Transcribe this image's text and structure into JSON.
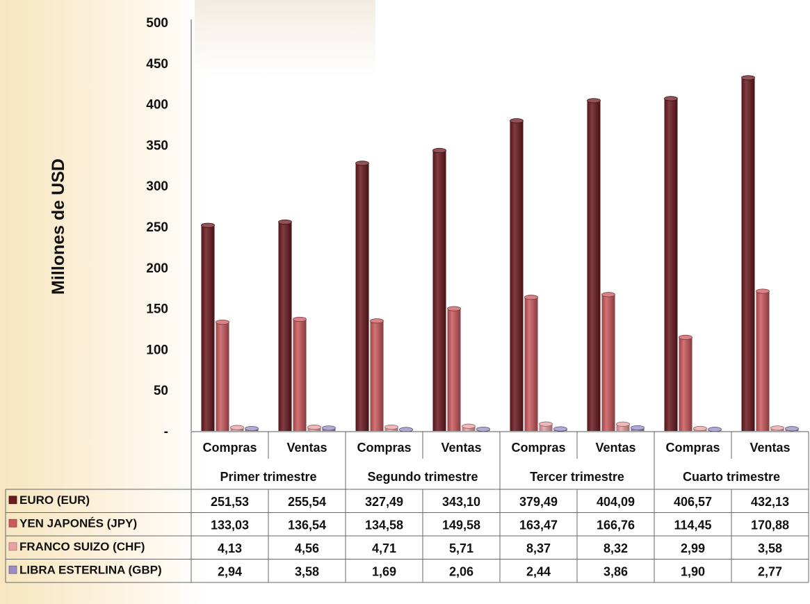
{
  "chart_data": {
    "type": "bar",
    "ylabel": "Millones de USD",
    "ylim": [
      0,
      500
    ],
    "yticks": [
      "-",
      "50",
      "100",
      "150",
      "200",
      "250",
      "300",
      "350",
      "400",
      "450",
      "500"
    ],
    "grid": false,
    "legend": "table-below",
    "subcategories": [
      "Compras",
      "Ventas",
      "Compras",
      "Ventas",
      "Compras",
      "Ventas",
      "Compras",
      "Ventas"
    ],
    "groups": [
      "Primer trimestre",
      "Segundo trimestre",
      "Tercer trimestre",
      "Cuarto trimestre"
    ],
    "series": [
      {
        "name": "EURO  (EUR)",
        "color": "#6b1a1f",
        "values": [
          251.53,
          255.54,
          327.49,
          343.1,
          379.49,
          404.09,
          406.57,
          432.13
        ],
        "labels": [
          "251,53",
          "255,54",
          "327,49",
          "343,10",
          "379,49",
          "404,09",
          "406,57",
          "432,13"
        ]
      },
      {
        "name": "YEN JAPONÉS  (JPY)",
        "color": "#cc5a5e",
        "values": [
          133.03,
          136.54,
          134.58,
          149.58,
          163.47,
          166.76,
          114.45,
          170.88
        ],
        "labels": [
          "133,03",
          "136,54",
          "134,58",
          "149,58",
          "163,47",
          "166,76",
          "114,45",
          "170,88"
        ]
      },
      {
        "name": "FRANCO SUIZO  (CHF)",
        "color": "#eaa1a4",
        "values": [
          4.13,
          4.56,
          4.71,
          5.71,
          8.37,
          8.32,
          2.99,
          3.58
        ],
        "labels": [
          "4,13",
          "4,56",
          "4,71",
          "5,71",
          "8,37",
          "8,32",
          "2,99",
          "3,58"
        ]
      },
      {
        "name": "LIBRA ESTERLINA  (GBP)",
        "color": "#9a8cc4",
        "values": [
          2.94,
          3.58,
          1.69,
          2.06,
          2.44,
          3.86,
          1.9,
          2.77
        ],
        "labels": [
          "2,94",
          "3,58",
          "1,69",
          "2,06",
          "2,44",
          "3,86",
          "1,90",
          "2,77"
        ]
      }
    ]
  }
}
